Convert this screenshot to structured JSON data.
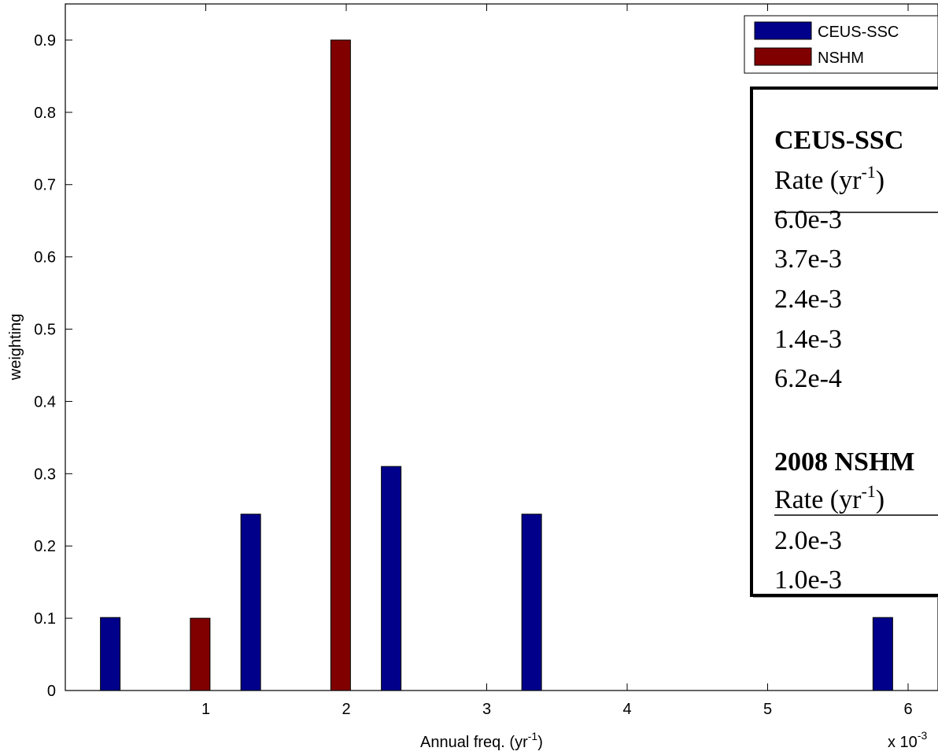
{
  "chart_data": {
    "type": "bar",
    "xlabel_main": "Annual freq. (yr",
    "xlabel_sup": "-1",
    "xlabel_close": ")",
    "ylabel": "weighting",
    "x_multiplier": "x 10",
    "x_multiplier_exp": "-3",
    "xlim": [
      0,
      6.3
    ],
    "ylim": [
      0,
      0.95
    ],
    "xticks": [
      1,
      2,
      3,
      4,
      5,
      6
    ],
    "xtick_labels": [
      "1",
      "2",
      "3",
      "4",
      "5",
      "6"
    ],
    "yticks": [
      0,
      0.1,
      0.2,
      0.3,
      0.4,
      0.5,
      0.6,
      0.7,
      0.8,
      0.9
    ],
    "ytick_labels": [
      "0",
      "0.1",
      "0.2",
      "0.3",
      "0.4",
      "0.5",
      "0.6",
      "0.7",
      "0.8",
      "0.9"
    ],
    "grid": false,
    "legend_position": "top-right",
    "series": [
      {
        "name": "CEUS-SSC",
        "color": "#00008B",
        "points": [
          {
            "x": 0.32,
            "y": 0.101
          },
          {
            "x": 1.32,
            "y": 0.244
          },
          {
            "x": 2.32,
            "y": 0.31
          },
          {
            "x": 3.32,
            "y": 0.244
          },
          {
            "x": 5.82,
            "y": 0.101
          }
        ]
      },
      {
        "name": "NSHM",
        "color": "#800000",
        "points": [
          {
            "x": 0.96,
            "y": 0.1
          },
          {
            "x": 1.96,
            "y": 0.9
          }
        ]
      }
    ]
  },
  "inset": {
    "ceus_heading": "CEUS-SSC",
    "rate_header_main": "Rate (yr",
    "rate_header_sup": "-1",
    "rate_header_close": ")",
    "ceus_rates": [
      "6.0e-3",
      "3.7e-3",
      "2.4e-3",
      "1.4e-3",
      "6.2e-4"
    ],
    "nshm_heading": "2008 NSHM",
    "nshm_rates": [
      "2.0e-3",
      "1.0e-3"
    ]
  }
}
